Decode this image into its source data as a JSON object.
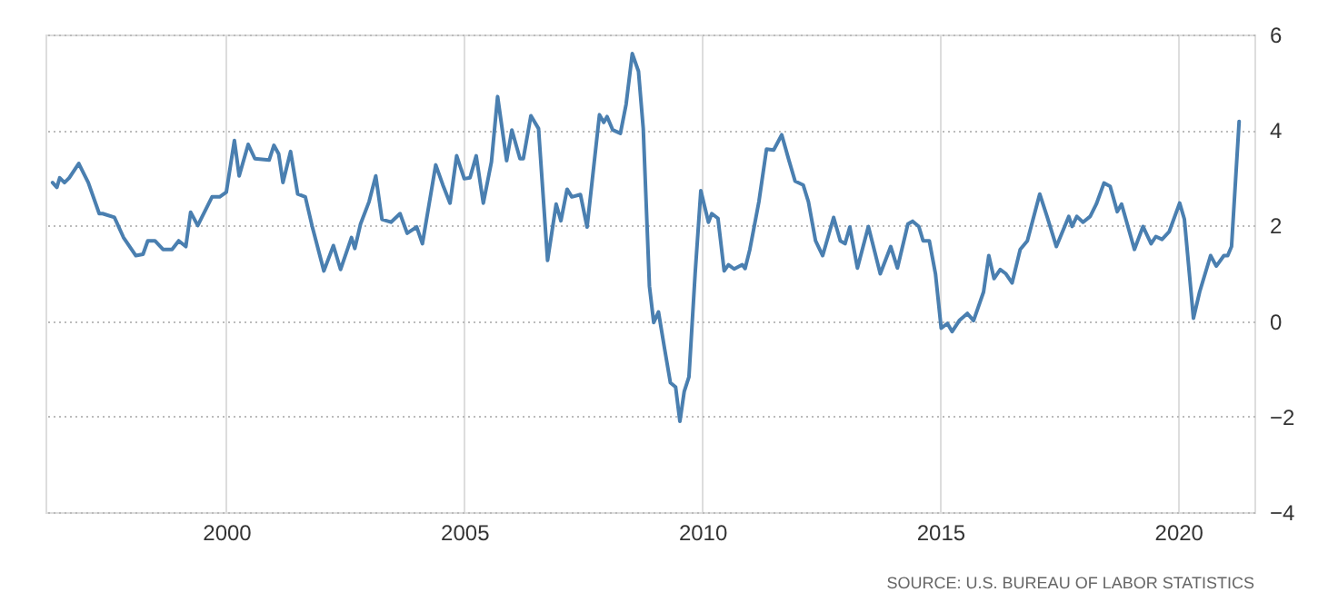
{
  "chart_data": {
    "type": "line",
    "xlim": [
      1996.2,
      2021.6
    ],
    "ylim": [
      -4,
      6
    ],
    "xticks": [
      2000,
      2005,
      2010,
      2015,
      2020
    ],
    "yticks": [
      -4,
      -2,
      0,
      2,
      4,
      6
    ],
    "grid": true,
    "marker": "none",
    "line_style": "solid",
    "annotations": [
      "SOURCE: U.S. BUREAU OF LABOR STATISTICS"
    ],
    "series": [
      {
        "color": "#4a7fb0",
        "x": [
          1996.35,
          1996.44,
          1996.5,
          1996.6,
          1996.7,
          1996.9,
          1997.05,
          1997.1,
          1997.33,
          1997.4,
          1997.65,
          1997.84,
          1998.1,
          1998.25,
          1998.35,
          1998.5,
          1998.67,
          1998.86,
          1999.0,
          1999.15,
          1999.25,
          1999.4,
          1999.7,
          1999.86,
          2000.0,
          2000.17,
          2000.27,
          2000.46,
          2000.6,
          2000.9,
          2001.0,
          2001.1,
          2001.19,
          2001.35,
          2001.5,
          2001.66,
          2001.8,
          2002.05,
          2002.25,
          2002.4,
          2002.63,
          2002.7,
          2002.82,
          2003.0,
          2003.14,
          2003.27,
          2003.46,
          2003.65,
          2003.8,
          2004.0,
          2004.12,
          2004.4,
          2004.55,
          2004.7,
          2004.84,
          2005.0,
          2005.12,
          2005.25,
          2005.4,
          2005.57,
          2005.7,
          2005.89,
          2006.0,
          2006.17,
          2006.24,
          2006.4,
          2006.56,
          2006.75,
          2006.93,
          2007.03,
          2007.16,
          2007.26,
          2007.44,
          2007.58,
          2007.84,
          2007.93,
          2008.0,
          2008.12,
          2008.28,
          2008.4,
          2008.53,
          2008.66,
          2008.76,
          2008.89,
          2008.98,
          2009.08,
          2009.2,
          2009.33,
          2009.44,
          2009.53,
          2009.62,
          2009.72,
          2009.85,
          2009.97,
          2010.13,
          2010.2,
          2010.33,
          2010.46,
          2010.55,
          2010.67,
          2010.84,
          2010.9,
          2011.0,
          2011.19,
          2011.35,
          2011.5,
          2011.67,
          2011.82,
          2011.95,
          2012.12,
          2012.23,
          2012.38,
          2012.53,
          2012.76,
          2012.9,
          2013.0,
          2013.1,
          2013.26,
          2013.49,
          2013.74,
          2013.96,
          2014.1,
          2014.32,
          2014.42,
          2014.55,
          2014.64,
          2014.77,
          2014.9,
          2015.02,
          2015.15,
          2015.25,
          2015.4,
          2015.57,
          2015.7,
          2015.91,
          2016.02,
          2016.13,
          2016.26,
          2016.38,
          2016.51,
          2016.68,
          2016.83,
          2017.09,
          2017.25,
          2017.44,
          2017.7,
          2017.77,
          2017.87,
          2018.0,
          2018.15,
          2018.28,
          2018.44,
          2018.57,
          2018.72,
          2018.81,
          2019.08,
          2019.26,
          2019.43,
          2019.53,
          2019.66,
          2019.81,
          2020.03,
          2020.13,
          2020.32,
          2020.45,
          2020.68,
          2020.8,
          2020.96,
          2021.04,
          2021.12,
          2021.28
        ],
        "values": [
          2.9,
          2.8,
          3.0,
          2.9,
          3.0,
          3.3,
          3.0,
          2.9,
          2.25,
          2.25,
          2.17,
          1.75,
          1.37,
          1.4,
          1.68,
          1.68,
          1.5,
          1.5,
          1.68,
          1.56,
          2.28,
          2.0,
          2.6,
          2.6,
          2.7,
          3.78,
          3.04,
          3.7,
          3.4,
          3.37,
          3.68,
          3.5,
          2.9,
          3.55,
          2.66,
          2.6,
          2.0,
          1.05,
          1.58,
          1.08,
          1.75,
          1.52,
          2.03,
          2.5,
          3.04,
          2.13,
          2.07,
          2.25,
          1.84,
          1.97,
          1.62,
          3.27,
          2.85,
          2.47,
          3.46,
          2.98,
          3.0,
          3.46,
          2.47,
          3.33,
          4.7,
          3.36,
          4.0,
          3.4,
          3.4,
          4.3,
          4.03,
          1.27,
          2.45,
          2.1,
          2.76,
          2.6,
          2.65,
          1.97,
          4.32,
          4.16,
          4.28,
          4.0,
          3.93,
          4.54,
          5.6,
          5.23,
          4.03,
          0.73,
          -0.03,
          0.19,
          -0.53,
          -1.29,
          -1.38,
          -2.1,
          -1.48,
          -1.17,
          0.99,
          2.73,
          2.07,
          2.25,
          2.15,
          1.05,
          1.18,
          1.09,
          1.18,
          1.1,
          1.5,
          2.5,
          3.6,
          3.58,
          3.9,
          3.37,
          2.93,
          2.85,
          2.5,
          1.68,
          1.37,
          2.17,
          1.68,
          1.62,
          1.97,
          1.11,
          1.98,
          0.99,
          1.56,
          1.11,
          2.03,
          2.09,
          1.98,
          1.68,
          1.68,
          0.99,
          -0.15,
          -0.05,
          -0.22,
          0.01,
          0.16,
          0.01,
          0.61,
          1.37,
          0.89,
          1.08,
          0.99,
          0.8,
          1.5,
          1.68,
          2.66,
          2.17,
          1.56,
          2.19,
          1.98,
          2.19,
          2.07,
          2.19,
          2.45,
          2.89,
          2.82,
          2.29,
          2.45,
          1.5,
          1.98,
          1.62,
          1.77,
          1.71,
          1.87,
          2.47,
          2.13,
          0.06,
          0.61,
          1.37,
          1.15,
          1.37,
          1.37,
          1.56,
          4.18
        ]
      }
    ]
  }
}
